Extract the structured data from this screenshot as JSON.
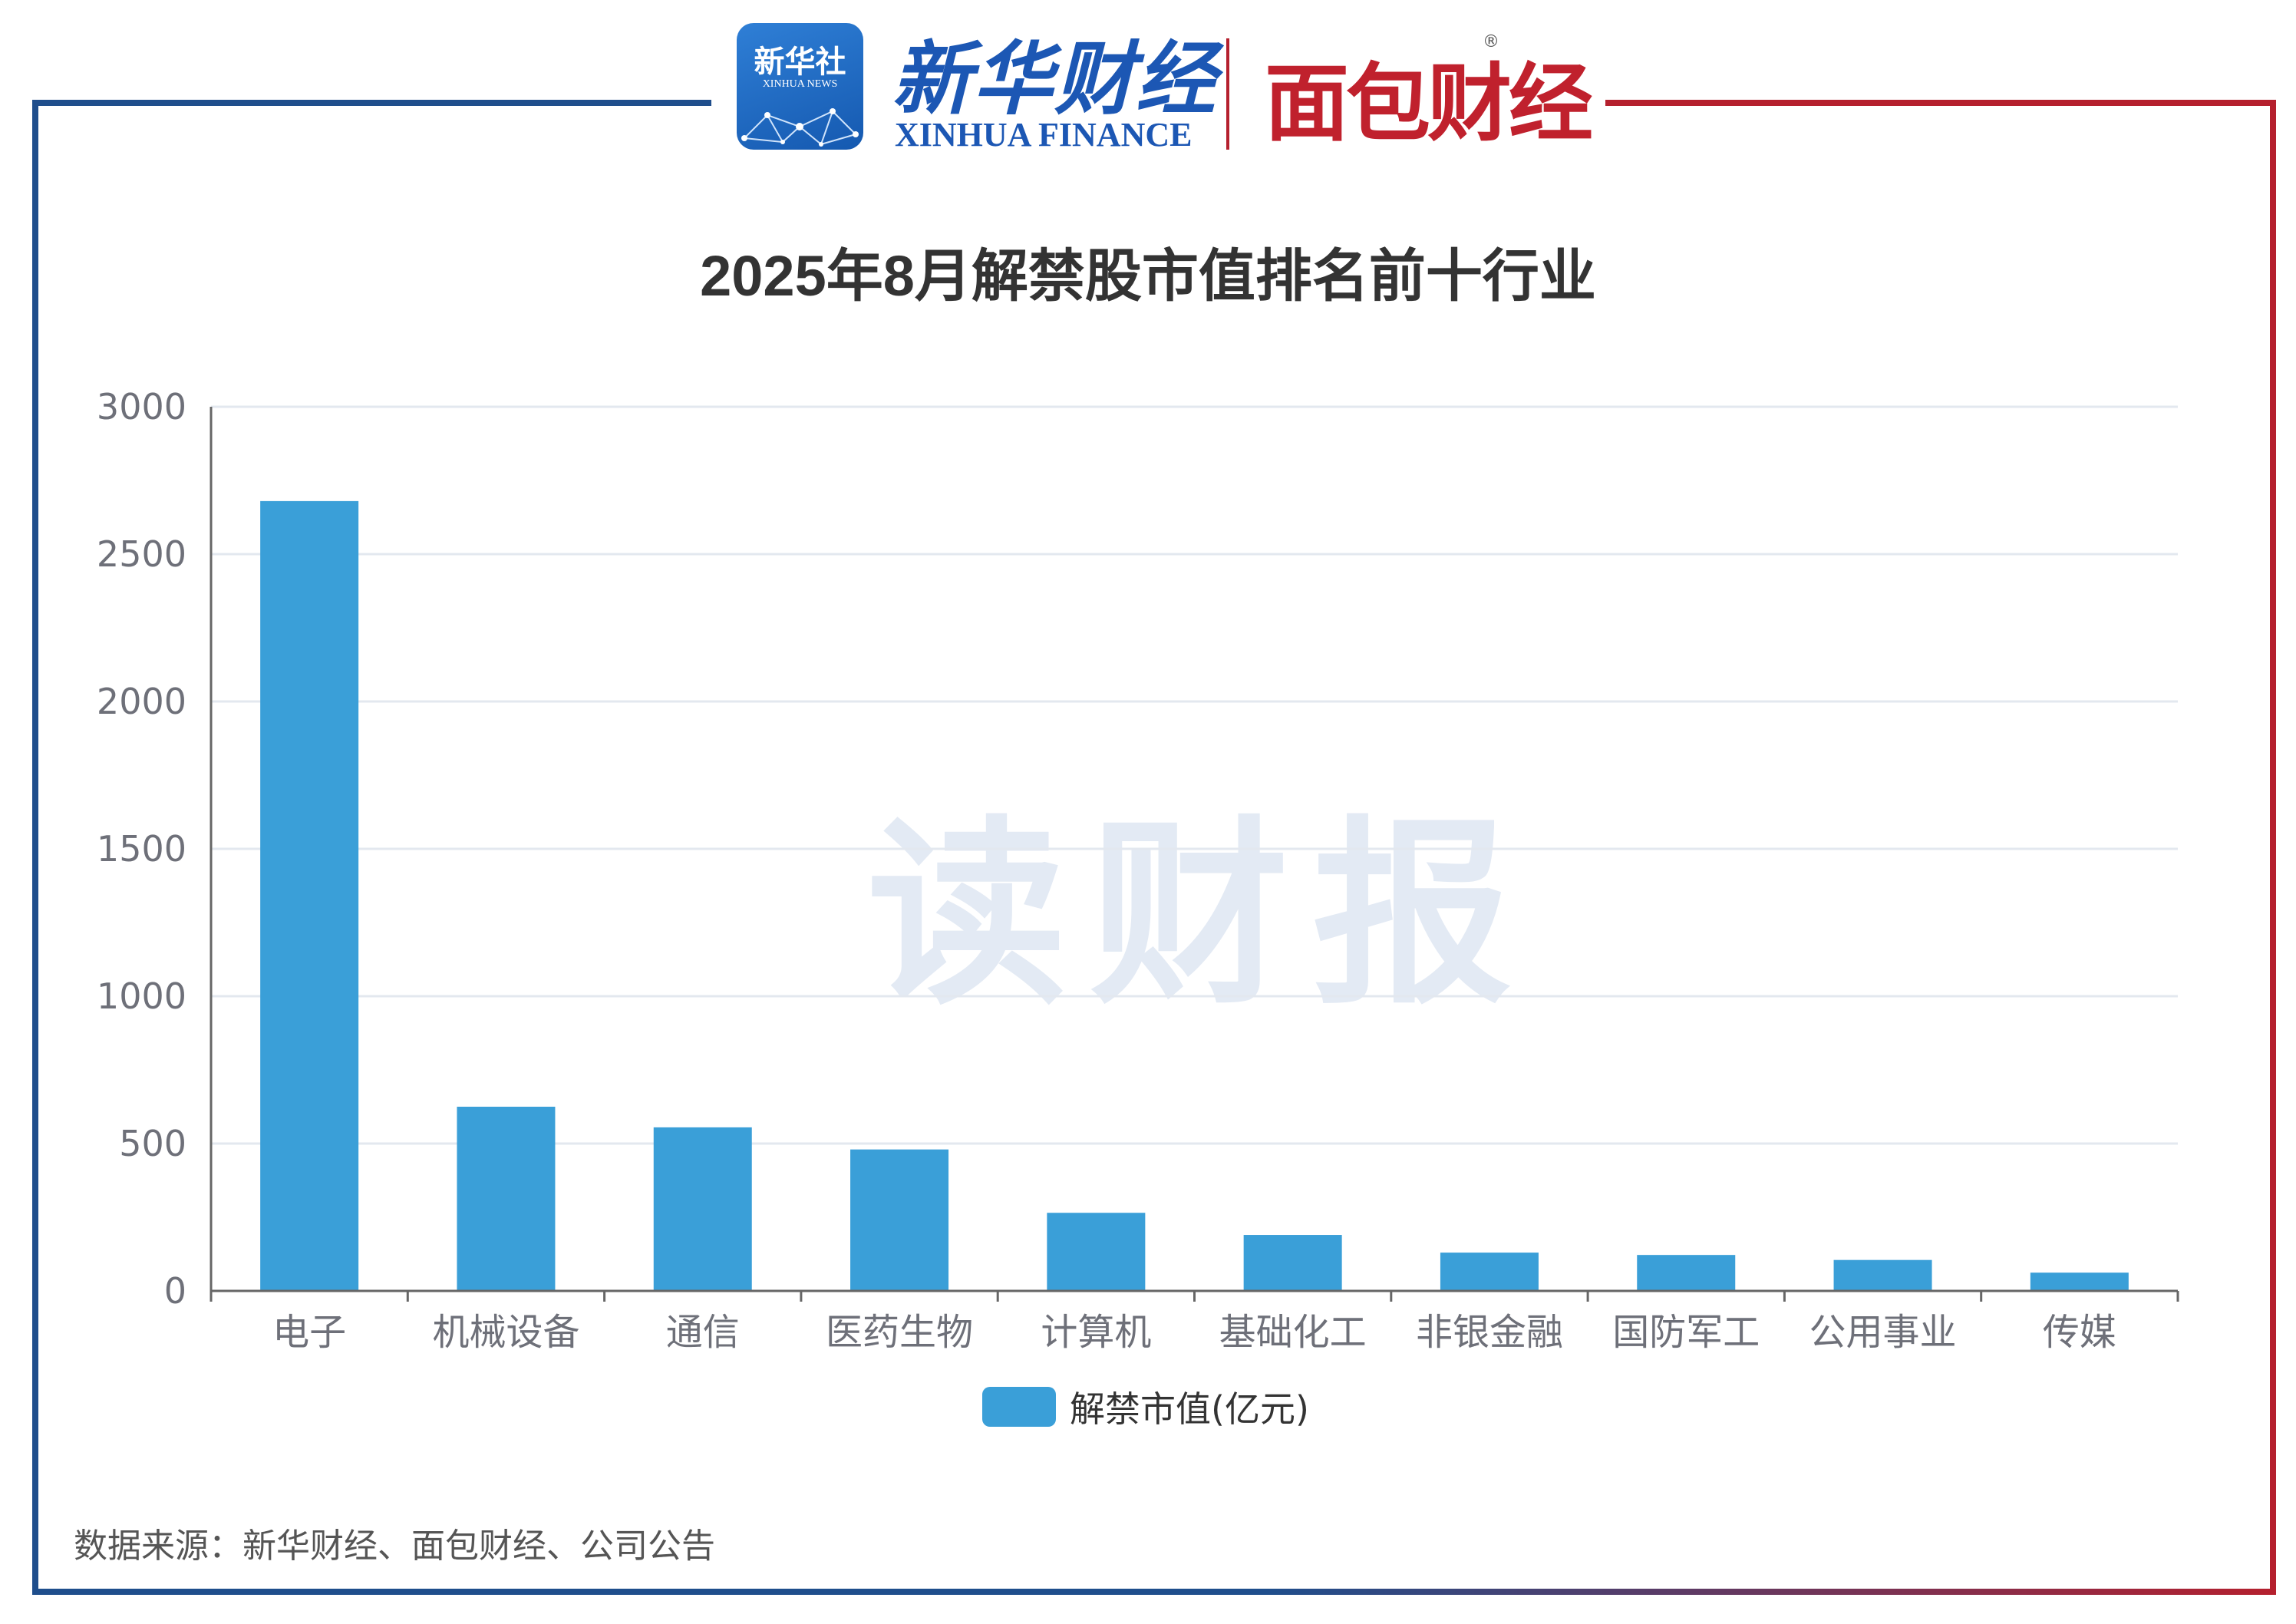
{
  "header": {
    "xinhua_logo_cn": "新华社",
    "xinhua_logo_en": "XINHUA NEWS",
    "finance_logo_cn": "新华财经",
    "finance_logo_en": "XINHUA FINANCE",
    "mianbao_logo": "面包财经",
    "registered_mark": "®"
  },
  "watermark": "读财报",
  "colors": {
    "bar": "#3a9fd8",
    "frame_blue": "#1f4e8c",
    "frame_red": "#b5202e",
    "grid": "#e3e8ef",
    "axis": "#666666"
  },
  "chart_data": {
    "type": "bar",
    "title": "2025年8月解禁股市值排名前十行业",
    "categories": [
      "电子",
      "机械设备",
      "通信",
      "医药生物",
      "计算机",
      "基础化工",
      "非银金融",
      "国防军工",
      "公用事业",
      "传媒"
    ],
    "series": [
      {
        "name": "解禁市值(亿元)",
        "values": [
          2680,
          625,
          555,
          480,
          265,
          190,
          130,
          122,
          105,
          62
        ]
      }
    ],
    "ylim": [
      0,
      3000
    ],
    "yticks": [
      0,
      500,
      1000,
      1500,
      2000,
      2500,
      3000
    ],
    "grid": true,
    "legend_position": "bottom-center"
  },
  "legend": {
    "label": "解禁市值(亿元)"
  },
  "source_note": "数据来源：新华财经、面包财经、公司公告"
}
